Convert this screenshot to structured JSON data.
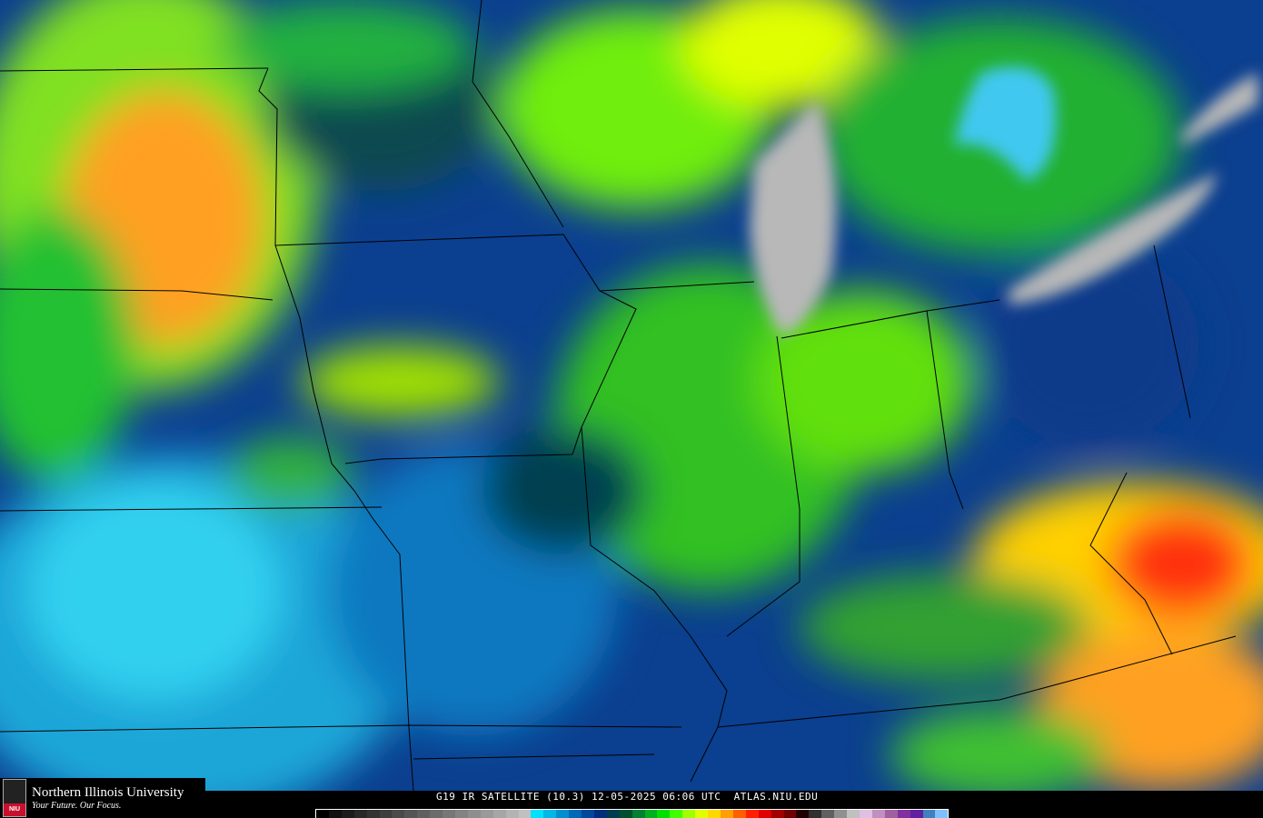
{
  "caption": "G19 IR SATELLITE (10.3) 12-05-2025 06:06 UTC  ATLAS.NIU.EDU",
  "logo": {
    "name": "Northern Illinois University",
    "tagline": "Your Future. Our Focus.",
    "mark": "NIU"
  },
  "colorbar": [
    "#000000",
    "#111111",
    "#1c1c1c",
    "#282828",
    "#333333",
    "#3e3e3e",
    "#4a4a4a",
    "#555555",
    "#606060",
    "#6c6c6c",
    "#777777",
    "#838383",
    "#8e8e8e",
    "#9a9a9a",
    "#a6a6a6",
    "#b3b3b3",
    "#c0c0c0",
    "#00e0ff",
    "#00b8e8",
    "#0090d0",
    "#0068b8",
    "#00489a",
    "#002e7c",
    "#003c50",
    "#005030",
    "#008030",
    "#00b020",
    "#00e000",
    "#40ff00",
    "#a0ff00",
    "#e0ff00",
    "#ffd800",
    "#ffa000",
    "#ff6000",
    "#ff2000",
    "#e00000",
    "#a00000",
    "#700000",
    "#200000",
    "#303030",
    "#606060",
    "#909090",
    "#c0c0c0",
    "#e0c0e0",
    "#c090c0",
    "#a060a0",
    "#8030a0",
    "#6020a0",
    "#4080c0",
    "#80c0ff"
  ]
}
